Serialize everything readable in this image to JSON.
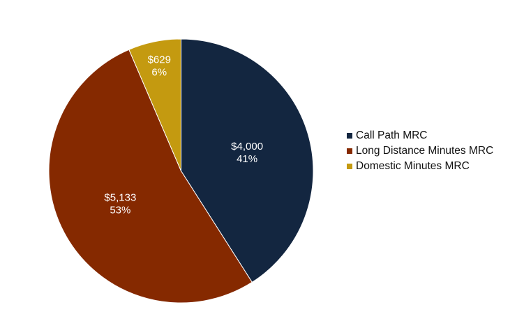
{
  "chart_data": {
    "type": "pie",
    "title": "",
    "slices": [
      {
        "name": "Call Path MRC",
        "value": 4000,
        "value_label": "$4,000",
        "percent_label": "41%",
        "color": "#132640"
      },
      {
        "name": "Long Distance Minutes MRC",
        "value": 5133,
        "value_label": "$5,133",
        "percent_label": "53%",
        "color": "#852900"
      },
      {
        "name": "Domestic Minutes MRC",
        "value": 629,
        "value_label": "$629",
        "percent_label": "6%",
        "color": "#C49A10"
      }
    ],
    "legend": {
      "position": "right",
      "items": [
        "Call Path MRC",
        "Long Distance Minutes MRC",
        "Domestic Minutes MRC"
      ]
    }
  }
}
